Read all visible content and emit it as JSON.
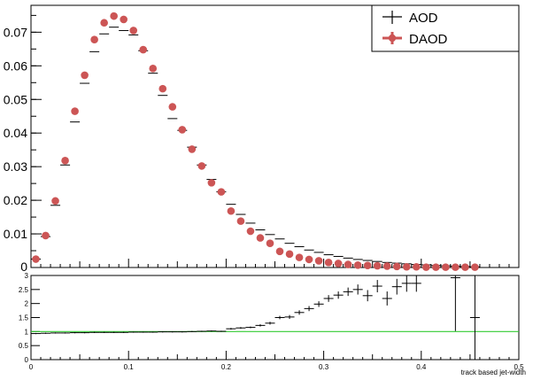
{
  "chart_data": [
    {
      "type": "scatter",
      "panel": "main",
      "xlim": [
        0,
        0.5
      ],
      "ylim": [
        0,
        0.078
      ],
      "ytick_labels": [
        "0.01",
        "0.02",
        "0.03",
        "0.04",
        "0.05",
        "0.06",
        "0.07"
      ],
      "y_zero_label": "0",
      "yticks": [
        0.01,
        0.02,
        0.03,
        0.04,
        0.05,
        0.06,
        0.07
      ],
      "legend_position": "top-right",
      "grid": false,
      "series": [
        {
          "name": "AOD",
          "style": "error-bar",
          "color": "#000000",
          "x": [
            0.005,
            0.015,
            0.025,
            0.035,
            0.045,
            0.055,
            0.065,
            0.075,
            0.085,
            0.095,
            0.105,
            0.115,
            0.125,
            0.135,
            0.145,
            0.155,
            0.165,
            0.175,
            0.185,
            0.195,
            0.205,
            0.215,
            0.225,
            0.235,
            0.245,
            0.255,
            0.265,
            0.275,
            0.285,
            0.295,
            0.305,
            0.315,
            0.325,
            0.335,
            0.345,
            0.355,
            0.365,
            0.375,
            0.385,
            0.395,
            0.405,
            0.415,
            0.425,
            0.435,
            0.445,
            0.455
          ],
          "y": [
            0.0025,
            0.0092,
            0.0185,
            0.0305,
            0.0433,
            0.0548,
            0.0642,
            0.0695,
            0.0715,
            0.0705,
            0.0692,
            0.0645,
            0.0578,
            0.0512,
            0.0443,
            0.0408,
            0.0358,
            0.0305,
            0.0262,
            0.0225,
            0.0188,
            0.0158,
            0.0132,
            0.0112,
            0.0098,
            0.0085,
            0.0072,
            0.0062,
            0.0052,
            0.0045,
            0.0038,
            0.0033,
            0.0028,
            0.0024,
            0.0021,
            0.0018,
            0.0015,
            0.0013,
            0.0011,
            0.0009,
            0.0008,
            0.0006,
            0.0005,
            0.0004,
            0.0003,
            0.0002
          ]
        },
        {
          "name": "DAOD",
          "style": "marker",
          "color": "#cc5555",
          "x": [
            0.005,
            0.015,
            0.025,
            0.035,
            0.045,
            0.055,
            0.065,
            0.075,
            0.085,
            0.095,
            0.105,
            0.115,
            0.125,
            0.135,
            0.145,
            0.155,
            0.165,
            0.175,
            0.185,
            0.195,
            0.205,
            0.215,
            0.225,
            0.235,
            0.245,
            0.255,
            0.265,
            0.275,
            0.285,
            0.295,
            0.305,
            0.315,
            0.325,
            0.335,
            0.345,
            0.355,
            0.365,
            0.375,
            0.385,
            0.395,
            0.405,
            0.415,
            0.425,
            0.435,
            0.445,
            0.455
          ],
          "y": [
            0.0025,
            0.0095,
            0.0198,
            0.0318,
            0.0465,
            0.0572,
            0.0678,
            0.0728,
            0.0748,
            0.0738,
            0.0705,
            0.0648,
            0.0592,
            0.0532,
            0.0478,
            0.041,
            0.0352,
            0.0302,
            0.0252,
            0.0225,
            0.0168,
            0.0138,
            0.0108,
            0.0088,
            0.0072,
            0.0048,
            0.004,
            0.003,
            0.0024,
            0.002,
            0.0015,
            0.0012,
            0.0009,
            0.0007,
            0.0006,
            0.0005,
            0.0004,
            0.0003,
            0.0002,
            0.0002,
            0.0001,
            0.0001,
            0.0001,
            0.0001,
            0.0001,
            0.0001
          ]
        }
      ]
    },
    {
      "type": "scatter",
      "panel": "ratio",
      "xlabel": "track based jet-width",
      "xlim": [
        0,
        0.5
      ],
      "ylim": [
        0,
        3
      ],
      "xtick_labels": [
        "0",
        "0.1",
        "0.2",
        "0.3",
        "0.4",
        "0.5"
      ],
      "xticks": [
        0,
        0.1,
        0.2,
        0.3,
        0.4,
        0.5
      ],
      "ytick_labels": [
        "0",
        "0.5",
        "1",
        "1.5",
        "2",
        "2.5",
        "3"
      ],
      "yticks": [
        0,
        0.5,
        1,
        1.5,
        2,
        2.5,
        3
      ],
      "reference_line": {
        "y": 1,
        "color": "#33cc33"
      },
      "series": [
        {
          "name": "",
          "style": "error-bar",
          "color": "#000000",
          "x": [
            0.005,
            0.015,
            0.025,
            0.035,
            0.045,
            0.055,
            0.065,
            0.075,
            0.085,
            0.095,
            0.105,
            0.115,
            0.125,
            0.135,
            0.145,
            0.155,
            0.165,
            0.175,
            0.185,
            0.195,
            0.205,
            0.215,
            0.225,
            0.235,
            0.245,
            0.255,
            0.265,
            0.275,
            0.285,
            0.295,
            0.305,
            0.315,
            0.325,
            0.335,
            0.345,
            0.355,
            0.365,
            0.375,
            0.385,
            0.395,
            0.435,
            0.455
          ],
          "y": [
            0.93,
            0.94,
            0.95,
            0.95,
            0.96,
            0.96,
            0.97,
            0.97,
            0.97,
            0.97,
            0.98,
            0.98,
            0.98,
            0.99,
            0.99,
            0.99,
            1.0,
            1.01,
            1.02,
            1.01,
            1.1,
            1.13,
            1.15,
            1.22,
            1.3,
            1.5,
            1.52,
            1.68,
            1.82,
            1.98,
            2.18,
            2.3,
            2.42,
            2.5,
            2.28,
            2.62,
            2.18,
            2.6,
            2.72,
            2.72,
            2.92,
            1.5
          ],
          "yerr": [
            0.02,
            0.02,
            0.02,
            0.02,
            0.02,
            0.02,
            0.02,
            0.02,
            0.02,
            0.02,
            0.02,
            0.02,
            0.02,
            0.02,
            0.02,
            0.02,
            0.02,
            0.02,
            0.02,
            0.02,
            0.03,
            0.03,
            0.03,
            0.04,
            0.05,
            0.06,
            0.07,
            0.08,
            0.09,
            0.1,
            0.12,
            0.13,
            0.15,
            0.18,
            0.2,
            0.22,
            0.25,
            0.28,
            0.3,
            0.3,
            1.9,
            1.5
          ]
        }
      ]
    }
  ]
}
